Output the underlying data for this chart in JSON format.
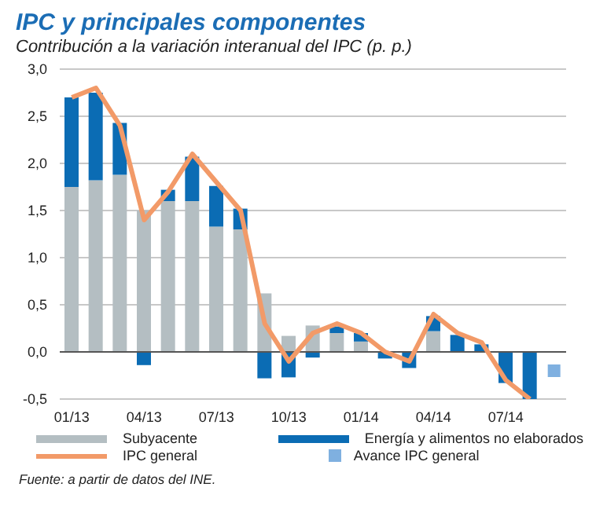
{
  "chart_data": {
    "type": "bar",
    "title": "IPC y principales componentes",
    "subtitle": "Contribución a la variación interanual del IPC (p. p.)",
    "categories": [
      "01/13",
      null,
      null,
      "04/13",
      null,
      null,
      "07/13",
      null,
      null,
      "10/13",
      null,
      null,
      "01/14",
      null,
      null,
      "04/14",
      null,
      null,
      "07/14",
      null,
      null
    ],
    "stacked": true,
    "series": [
      {
        "name": "Subyacente",
        "color": "#b4bec2",
        "values": [
          1.75,
          1.82,
          1.88,
          1.5,
          1.6,
          1.6,
          1.33,
          1.3,
          0.62,
          0.17,
          0.28,
          0.2,
          0.11,
          null,
          null,
          0.22,
          null,
          null,
          0,
          0,
          null
        ]
      },
      {
        "name": "Energía y alimentos no elaborados",
        "color": "#0b6cb4",
        "values": [
          0.95,
          0.93,
          0.55,
          -0.14,
          0.12,
          0.47,
          0.43,
          0.22,
          -0.28,
          -0.27,
          -0.06,
          0.07,
          0.09,
          -0.07,
          -0.17,
          0.16,
          0.18,
          0.08,
          -0.33,
          -0.5,
          null
        ]
      },
      {
        "name": "IPC general",
        "type": "line",
        "color": "#f29a68",
        "values": [
          2.7,
          2.8,
          2.4,
          1.4,
          1.7,
          2.1,
          1.8,
          1.5,
          0.3,
          -0.1,
          0.2,
          0.3,
          0.2,
          0.0,
          -0.1,
          0.4,
          0.2,
          0.1,
          -0.3,
          -0.5,
          null
        ]
      },
      {
        "name": "Avance IPC general",
        "type": "scatter",
        "marker": "square",
        "color": "#7fb0e0",
        "values": [
          null,
          null,
          null,
          null,
          null,
          null,
          null,
          null,
          null,
          null,
          null,
          null,
          null,
          null,
          null,
          null,
          null,
          null,
          null,
          null,
          -0.2
        ]
      }
    ],
    "ylim": [
      -0.5,
      3.0
    ],
    "yticks": [
      {
        "value": -0.5,
        "label": "-0,5"
      },
      {
        "value": 0,
        "label": "0,0"
      },
      {
        "value": 0.5,
        "label": "0,5"
      },
      {
        "value": 1,
        "label": "1,0"
      },
      {
        "value": 1.5,
        "label": "1,5"
      },
      {
        "value": 2,
        "label": "2,0"
      },
      {
        "value": 2.5,
        "label": "2,5"
      },
      {
        "value": 3,
        "label": "3,0"
      }
    ],
    "grid": "y",
    "legend": "bottom",
    "annotations": [
      "Fuente: a partir de datos del INE."
    ]
  }
}
